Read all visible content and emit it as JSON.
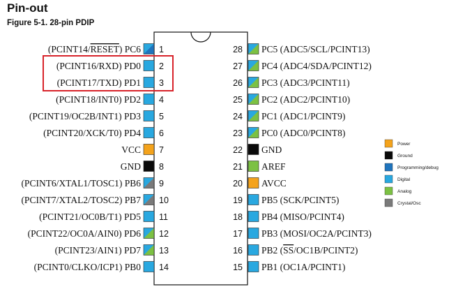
{
  "page": {
    "title": "Pin-out",
    "subtitle": "Figure 5-1.  28-pin PDIP"
  },
  "colors": {
    "power": "#f4a31c",
    "ground": "#0a0a0a",
    "programming": "#1f74bd",
    "digital": "#29a8e0",
    "analog": "#7cc143",
    "crystal": "#7a7a7a",
    "highlight": "#d8232a"
  },
  "legend": [
    {
      "label": "Power",
      "type": "power"
    },
    {
      "label": "Ground",
      "type": "ground"
    },
    {
      "label": "Programming/debug",
      "type": "programming"
    },
    {
      "label": "Digital",
      "type": "digital"
    },
    {
      "label": "Analog",
      "type": "analog"
    },
    {
      "label": "Crystal/Osc",
      "type": "crystal"
    }
  ],
  "left_pins": [
    {
      "num": "1",
      "label": "(PCINT14/RESET) PC6",
      "overline": "RESET",
      "colors": [
        "digital",
        "programming"
      ]
    },
    {
      "num": "2",
      "label": "(PCINT16/RXD) PD0",
      "colors": [
        "digital"
      ]
    },
    {
      "num": "3",
      "label": "(PCINT17/TXD) PD1",
      "colors": [
        "digital"
      ]
    },
    {
      "num": "4",
      "label": "(PCINT18/INT0) PD2",
      "colors": [
        "digital"
      ]
    },
    {
      "num": "5",
      "label": "(PCINT19/OC2B/INT1) PD3",
      "colors": [
        "digital"
      ]
    },
    {
      "num": "6",
      "label": "(PCINT20/XCK/T0) PD4",
      "colors": [
        "digital"
      ]
    },
    {
      "num": "7",
      "label": "VCC",
      "colors": [
        "power"
      ]
    },
    {
      "num": "8",
      "label": "GND",
      "colors": [
        "ground"
      ]
    },
    {
      "num": "9",
      "label": "(PCINT6/XTAL1/TOSC1) PB6",
      "colors": [
        "digital",
        "crystal"
      ]
    },
    {
      "num": "10",
      "label": "(PCINT7/XTAL2/TOSC2) PB7",
      "colors": [
        "digital",
        "crystal"
      ]
    },
    {
      "num": "11",
      "label": "(PCINT21/OC0B/T1) PD5",
      "colors": [
        "digital"
      ]
    },
    {
      "num": "12",
      "label": "(PCINT22/OC0A/AIN0) PD6",
      "colors": [
        "digital",
        "analog"
      ]
    },
    {
      "num": "13",
      "label": "(PCINT23/AIN1) PD7",
      "colors": [
        "digital",
        "analog"
      ]
    },
    {
      "num": "14",
      "label": "(PCINT0/CLKO/ICP1) PB0",
      "colors": [
        "digital"
      ]
    }
  ],
  "right_pins": [
    {
      "num": "28",
      "label": "PC5 (ADC5/SCL/PCINT13)",
      "colors": [
        "digital",
        "analog"
      ]
    },
    {
      "num": "27",
      "label": "PC4 (ADC4/SDA/PCINT12)",
      "colors": [
        "digital",
        "analog"
      ]
    },
    {
      "num": "26",
      "label": "PC3 (ADC3/PCINT11)",
      "colors": [
        "digital",
        "analog"
      ]
    },
    {
      "num": "25",
      "label": "PC2 (ADC2/PCINT10)",
      "colors": [
        "digital",
        "analog"
      ]
    },
    {
      "num": "24",
      "label": "PC1 (ADC1/PCINT9)",
      "colors": [
        "digital",
        "analog"
      ]
    },
    {
      "num": "23",
      "label": "PC0 (ADC0/PCINT8)",
      "colors": [
        "digital",
        "analog"
      ]
    },
    {
      "num": "22",
      "label": "GND",
      "colors": [
        "ground"
      ]
    },
    {
      "num": "21",
      "label": "AREF",
      "colors": [
        "analog"
      ]
    },
    {
      "num": "20",
      "label": "AVCC",
      "colors": [
        "power"
      ]
    },
    {
      "num": "19",
      "label": "PB5 (SCK/PCINT5)",
      "colors": [
        "digital"
      ]
    },
    {
      "num": "18",
      "label": "PB4 (MISO/PCINT4)",
      "colors": [
        "digital"
      ]
    },
    {
      "num": "17",
      "label": "PB3 (MOSI/OC2A/PCINT3)",
      "colors": [
        "digital"
      ]
    },
    {
      "num": "16",
      "label": "PB2 (SS/OC1B/PCINT2)",
      "overline": "SS",
      "colors": [
        "digital"
      ]
    },
    {
      "num": "15",
      "label": "PB1 (OC1A/PCINT1)",
      "colors": [
        "digital"
      ]
    }
  ]
}
